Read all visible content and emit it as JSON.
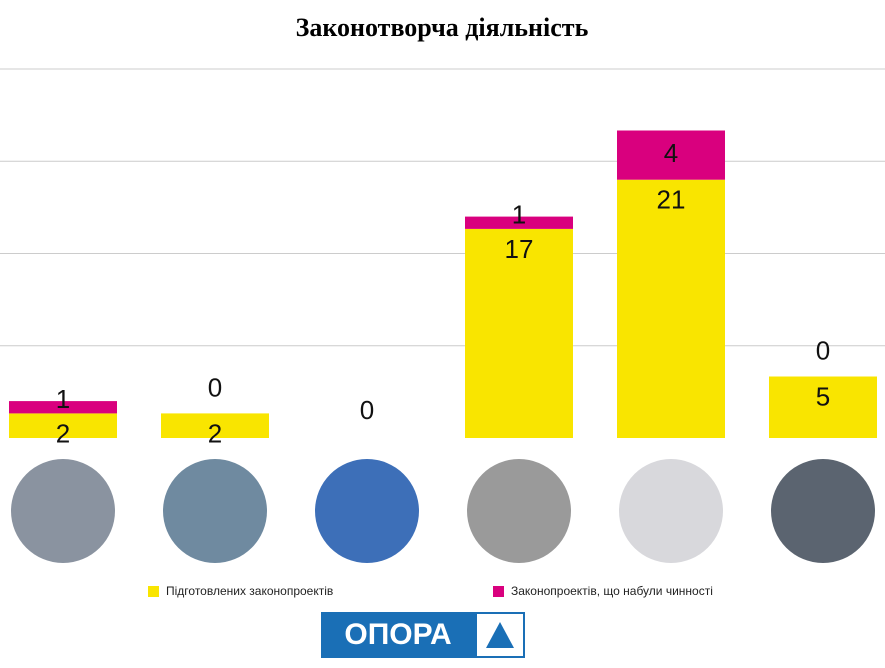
{
  "chart_data": {
    "type": "stacked-bar",
    "title": "Законотворча діяльність",
    "categories": [
      null,
      null,
      null,
      null,
      null,
      null
    ],
    "series": [
      {
        "name": "Підготовлених законопроектів",
        "color": "#f9e500",
        "values": [
          2,
          2,
          0,
          17,
          21,
          5
        ]
      },
      {
        "name": "Законопроектів, що набули чинності",
        "color": "#d9007e",
        "values": [
          1,
          0,
          null,
          1,
          4,
          0
        ]
      }
    ],
    "ylim": [
      0,
      30
    ],
    "yticks": [
      0,
      7.5,
      15,
      22.5,
      30
    ],
    "grid": true
  },
  "logo": "ОПОРА"
}
